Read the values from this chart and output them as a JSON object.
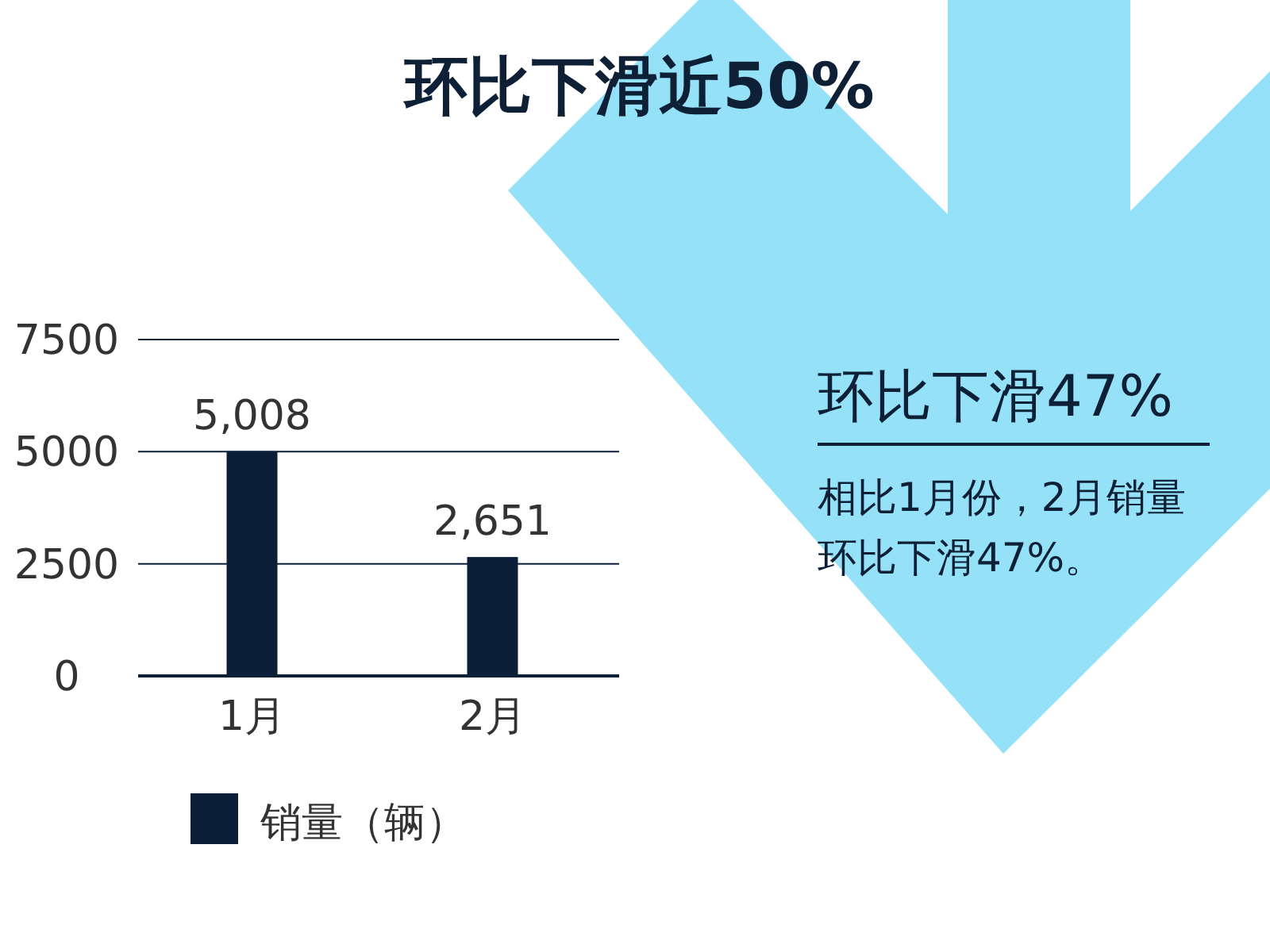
{
  "chart_data": {
    "type": "bar",
    "title": "环比下滑近50%",
    "categories": [
      "1月",
      "2月"
    ],
    "series": [
      {
        "name": "销量（辆）",
        "color": "#0b2038",
        "values": [
          5008,
          2651
        ],
        "value_labels": [
          "5,008",
          "2,651"
        ]
      }
    ],
    "ylim": [
      0,
      7500
    ],
    "yticks": [
      0,
      2500,
      5000,
      7500
    ],
    "grid": "y",
    "legend": "bottom left",
    "annotations": [
      "环比下滑47%",
      "相比1月份，2月销量环比下滑47%。"
    ]
  }
}
